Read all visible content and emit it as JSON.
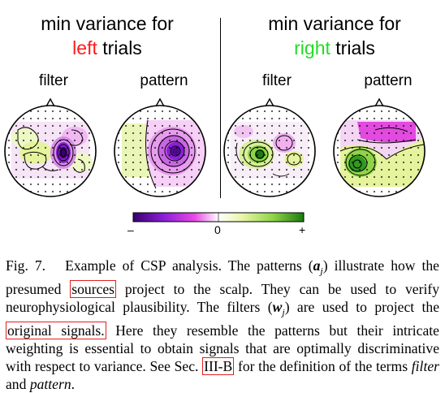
{
  "titles": {
    "left": {
      "line1": "min variance for",
      "colored_word": "left",
      "rest": " trials",
      "color": "#ff1a1a"
    },
    "right": {
      "line1": "min variance for",
      "colored_word": "right",
      "rest": " trials",
      "color": "#22dd22"
    }
  },
  "column_labels": [
    "filter",
    "pattern",
    "filter",
    "pattern"
  ],
  "colorbar": {
    "min_label": "–",
    "mid_label": "0",
    "max_label": "+",
    "colors": [
      "#3a006b",
      "#8a1fd8",
      "#e64ae6",
      "#ffffff",
      "#e9f5a8",
      "#8fd448",
      "#1c7a10"
    ]
  },
  "caption": {
    "fig_label": "Fig. 7.",
    "s1": "Example of CSP analysis. The patterns (",
    "a_sym": "a",
    "j_sub": "j",
    "s2": ") illustrate how the presumed ",
    "box1": "sources",
    "s3": " project to the scalp. They can be used to verify neurophysiological plausibility. The filters (",
    "w_sym": "w",
    "j_sub2": "j",
    "s4": ") are used to project the ",
    "box2": "original signals.",
    "s5": " Here they resemble the patterns but their intricate weighting is essential to obtain signals that are optimally discriminative with respect to variance. See Sec. ",
    "box3": "III-B",
    "s6": " for the definition of the terms ",
    "term1": "filter",
    "s7": " and ",
    "term2": "pattern",
    "s8": "."
  }
}
